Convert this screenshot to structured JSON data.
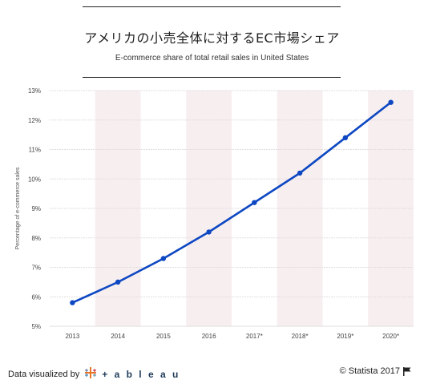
{
  "header": {
    "title": "アメリカの小売全体に対するEC市場シェア",
    "subtitle": "E-commerce share of total retail sales in United States"
  },
  "footer": {
    "visualized_by": "Data visualized by",
    "tableau": "+ a b l e a u",
    "credit": "© Statista 2017"
  },
  "colors": {
    "line": "#0d47c2",
    "band": "#f7eef0",
    "grid": "#e2dede",
    "tableau": "#1f3b5a"
  },
  "icons": [
    "tableau-logo-icon",
    "flag-icon"
  ],
  "chart_data": {
    "type": "line",
    "categories": [
      "2013",
      "2014",
      "2015",
      "2016",
      "2017*",
      "2018*",
      "2019*",
      "2020*"
    ],
    "series": [
      {
        "name": "",
        "values": [
          5.8,
          6.5,
          7.3,
          8.2,
          9.2,
          10.2,
          11.4,
          12.6
        ]
      }
    ],
    "ylabel": "Percentage of e-commerce sales",
    "xlabel": "",
    "ylim": [
      5,
      13
    ],
    "yticks": [
      "5%",
      "6%",
      "7%",
      "8%",
      "9%",
      "10%",
      "11%",
      "12%",
      "13%"
    ],
    "grid": true,
    "alternating_bands": true
  }
}
